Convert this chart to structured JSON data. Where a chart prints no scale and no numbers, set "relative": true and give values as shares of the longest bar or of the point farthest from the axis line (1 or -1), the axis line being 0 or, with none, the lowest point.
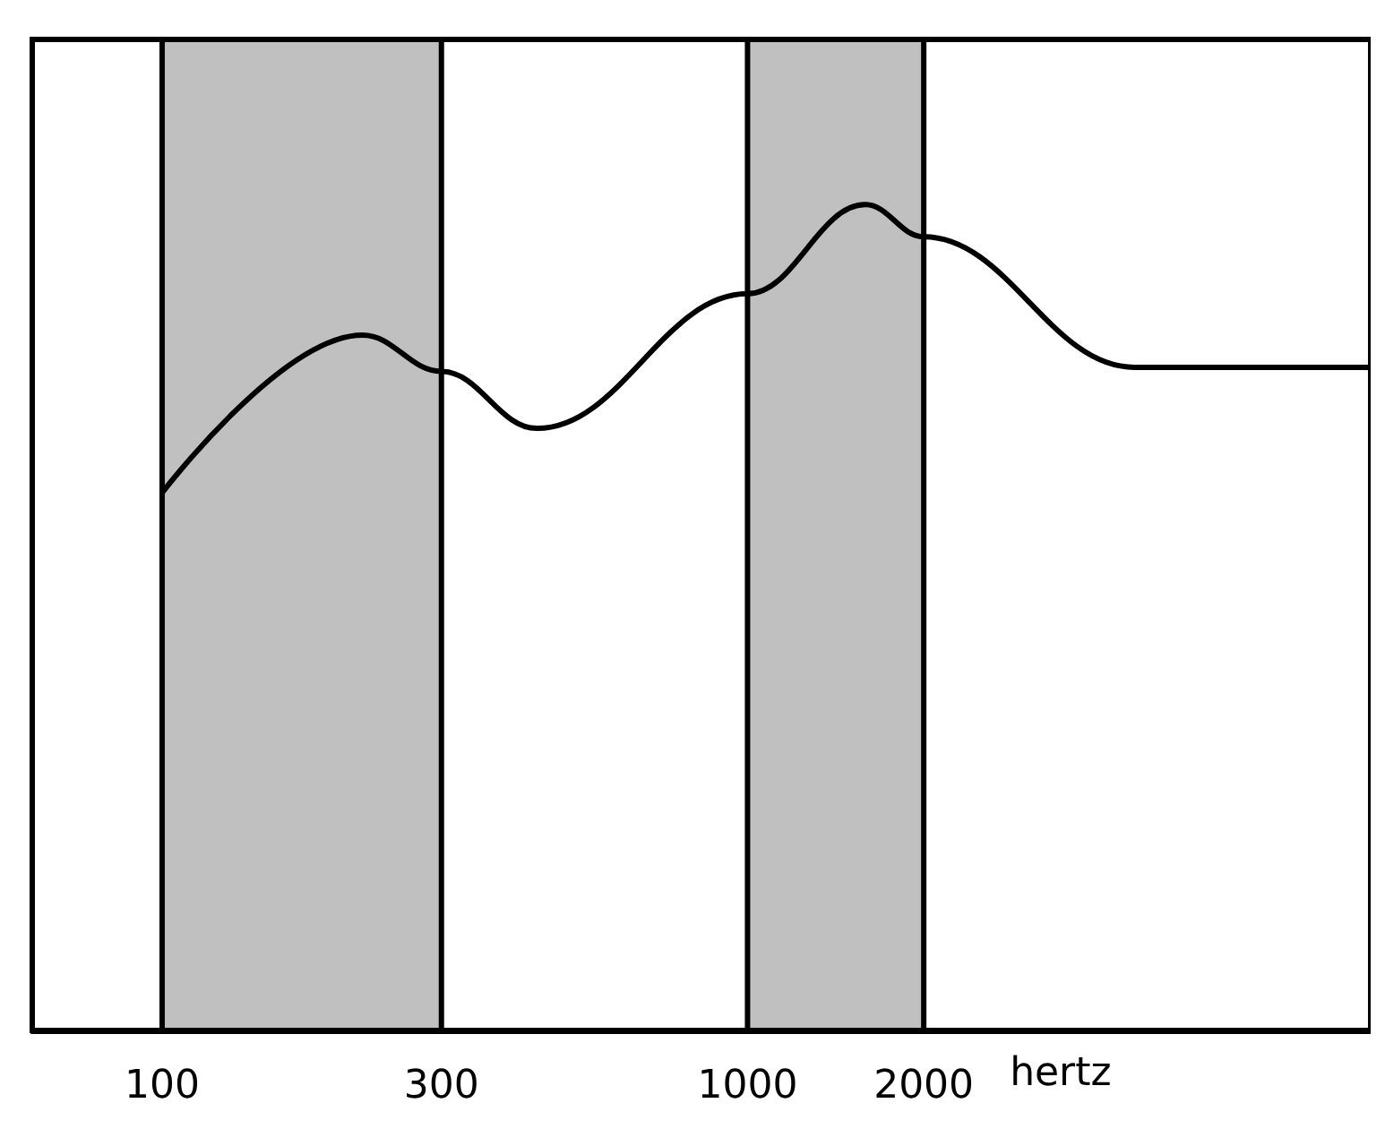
{
  "chart_data": {
    "type": "line",
    "xlabel": "hertz",
    "relative": true,
    "log": "x",
    "xlim": [
      60,
      11600
    ],
    "xticks": [
      100,
      300,
      1000,
      2000
    ],
    "series": [
      {
        "color": "#000000",
        "x": [
          100,
          220,
          300,
          437,
          1000,
          1590,
          2000,
          4580,
          11600
        ],
        "values": [
          0.651,
          0.842,
          0.798,
          0.729,
          0.892,
          1,
          0.961,
          0.803,
          0.803
        ]
      }
    ],
    "bands": [
      {
        "axis": "x",
        "from": 100,
        "to": 300,
        "color": "#c0c0c0"
      },
      {
        "axis": "x",
        "from": 1000,
        "to": 2000,
        "color": "#c0c0c0"
      }
    ],
    "marker": "none",
    "line_style": "solid"
  }
}
